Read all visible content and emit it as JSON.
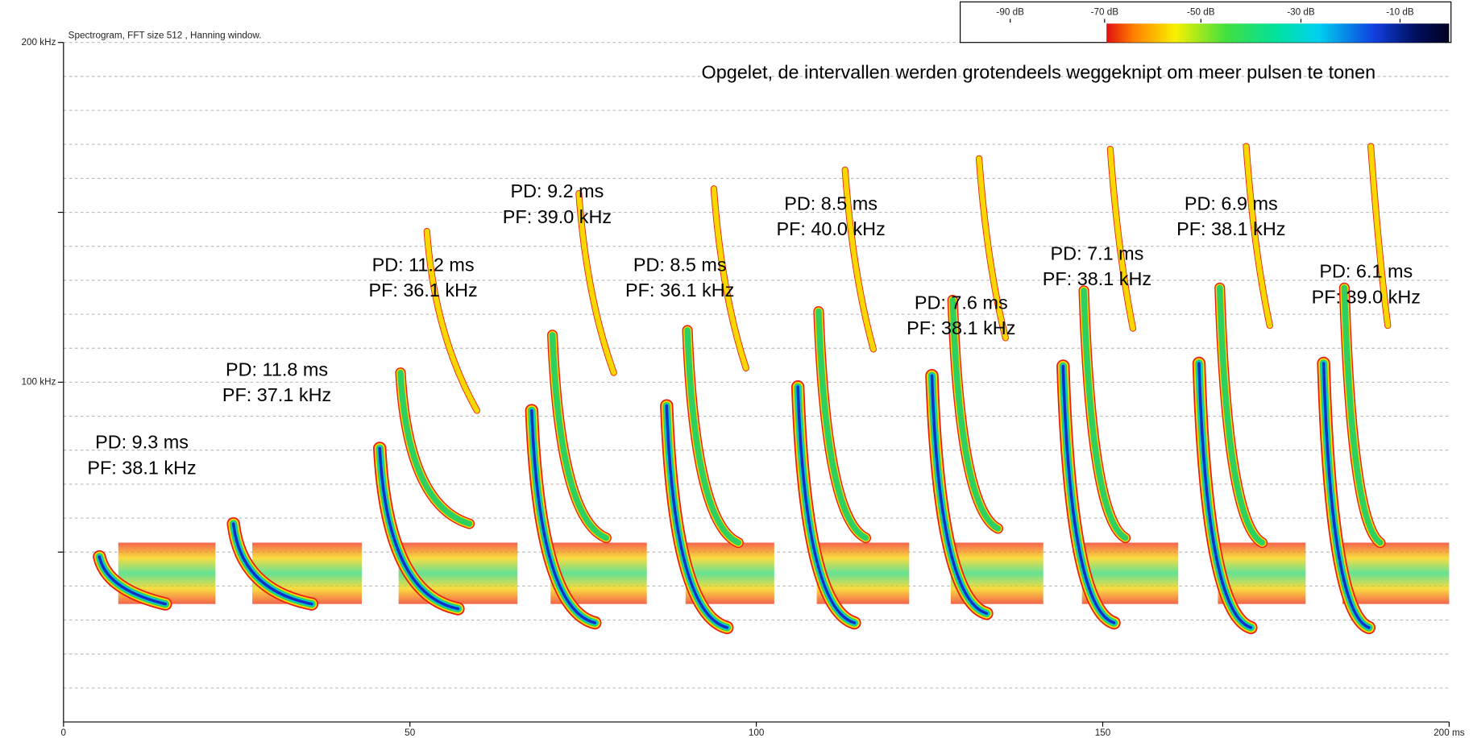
{
  "chart_data": {
    "type": "spectrogram",
    "title": "Spectrogram, FFT size 512 , Hanning window.",
    "note": "Opgelet, de intervallen werden grotendeels weggeknipt om meer pulsen te tonen",
    "xlim": [
      0,
      200
    ],
    "xticks": [
      0,
      50,
      100,
      150,
      {
        "value": 200,
        "label": "200 ms"
      }
    ],
    "ylim": [
      0,
      200
    ],
    "yticks": [
      50,
      {
        "value": 100,
        "label": "100 kHz"
      },
      150,
      {
        "value": 200,
        "label": "200 kHz"
      }
    ],
    "grid": true,
    "grid_interval": 10,
    "colorbar": {
      "labels": [
        "-90 dB",
        "-70 dB",
        "-50 dB",
        "-30 dB",
        "-10 dB"
      ]
    },
    "pulses": [
      {
        "pd": "PD: 9.3 ms",
        "pf": "PF: 38.1 kHz"
      },
      {
        "pd": "PD: 11.8 ms",
        "pf": "PF: 37.1 kHz"
      },
      {
        "pd": "PD: 11.2 ms",
        "pf": "PF: 36.1 kHz"
      },
      {
        "pd": "PD: 9.2 ms",
        "pf": "PF: 39.0 kHz"
      },
      {
        "pd": "PD: 8.5 ms",
        "pf": "PF: 36.1 kHz"
      },
      {
        "pd": "PD: 8.5 ms",
        "pf": "PF: 40.0 kHz"
      },
      {
        "pd": "PD: 7.6 ms",
        "pf": "PF: 38.1 kHz"
      },
      {
        "pd": "PD: 7.1 ms",
        "pf": "PF: 38.1 kHz"
      },
      {
        "pd": "PD: 6.9 ms",
        "pf": "PF: 38.1 kHz"
      },
      {
        "pd": "PD: 6.1 ms",
        "pf": "PF: 39.0 kHz"
      }
    ]
  }
}
